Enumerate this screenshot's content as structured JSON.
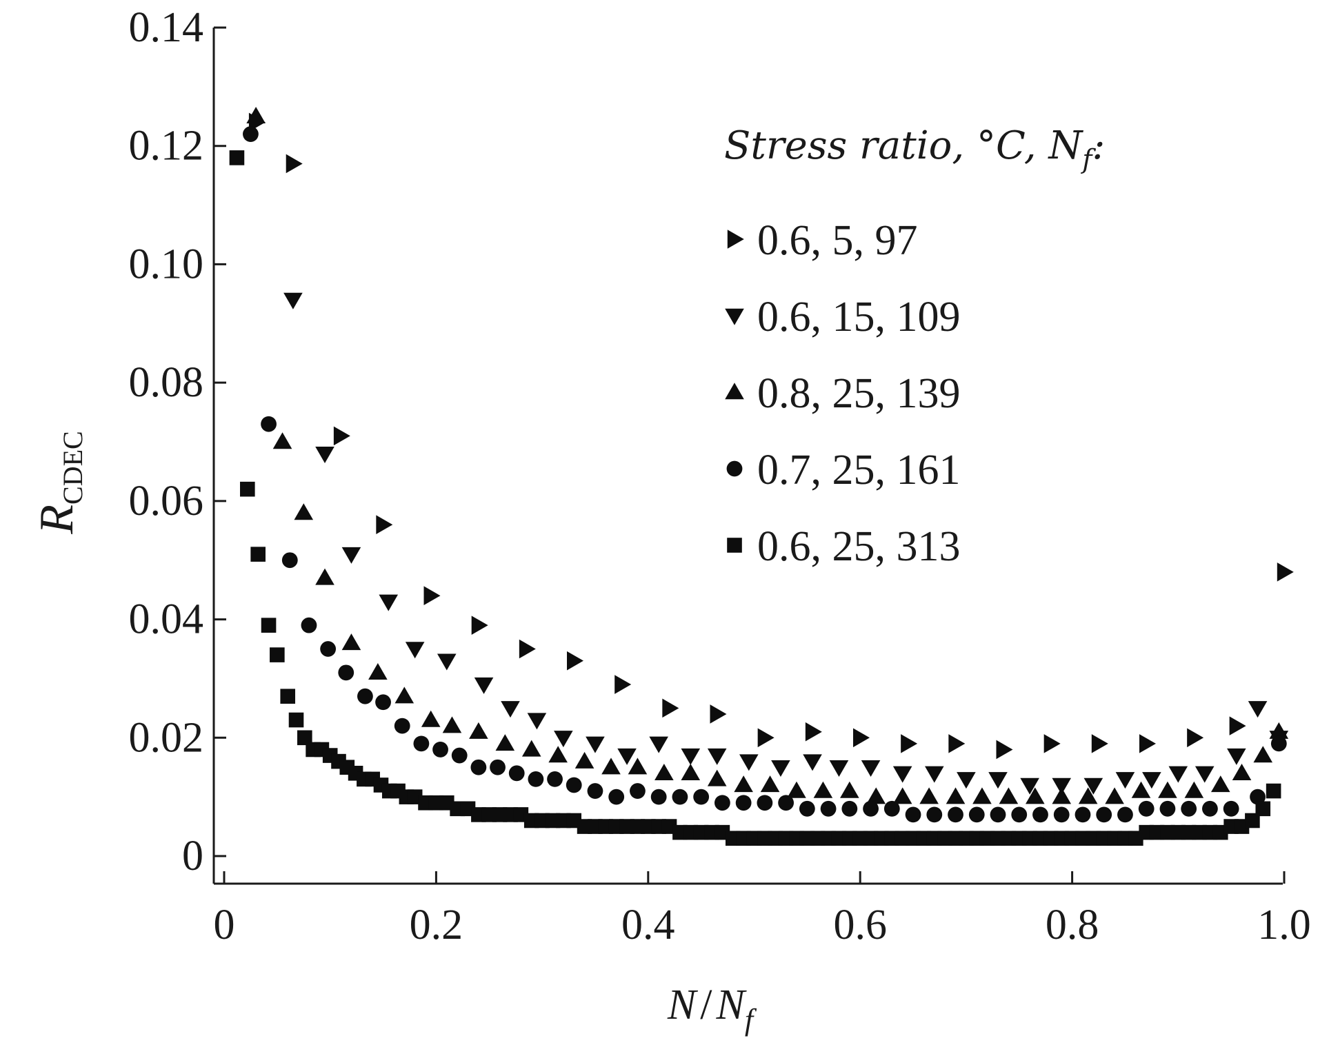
{
  "chart_data": {
    "type": "scatter",
    "title": "",
    "xlabel": "N/Nf",
    "ylabel": "R_CDEC",
    "xlim": [
      0,
      1.0
    ],
    "ylim": [
      0,
      0.14
    ],
    "grid": false,
    "legend_title": "Stress ratio, °C, Nf:",
    "legend_position": "top-right",
    "x_ticks": [
      "0",
      "0.2",
      "0.4",
      "0.6",
      "0.8",
      "1.0"
    ],
    "y_ticks": [
      "0",
      "0.02",
      "0.04",
      "0.06",
      "0.08",
      "0.10",
      "0.12",
      "0.14"
    ],
    "series": [
      {
        "name": "0.6, 5, 97",
        "marker": "triangle-right",
        "points": [
          [
            0.03,
            0.124
          ],
          [
            0.065,
            0.117
          ],
          [
            0.11,
            0.071
          ],
          [
            0.15,
            0.056
          ],
          [
            0.195,
            0.044
          ],
          [
            0.24,
            0.039
          ],
          [
            0.285,
            0.035
          ],
          [
            0.33,
            0.033
          ],
          [
            0.375,
            0.029
          ],
          [
            0.42,
            0.025
          ],
          [
            0.465,
            0.024
          ],
          [
            0.51,
            0.02
          ],
          [
            0.555,
            0.021
          ],
          [
            0.6,
            0.02
          ],
          [
            0.645,
            0.019
          ],
          [
            0.69,
            0.019
          ],
          [
            0.735,
            0.018
          ],
          [
            0.78,
            0.019
          ],
          [
            0.825,
            0.019
          ],
          [
            0.87,
            0.019
          ],
          [
            0.915,
            0.02
          ],
          [
            0.955,
            0.022
          ],
          [
            1.0,
            0.048
          ]
        ]
      },
      {
        "name": "0.6, 15, 109",
        "marker": "triangle-down",
        "points": [
          [
            0.065,
            0.094
          ],
          [
            0.095,
            0.068
          ],
          [
            0.12,
            0.051
          ],
          [
            0.155,
            0.043
          ],
          [
            0.18,
            0.035
          ],
          [
            0.21,
            0.033
          ],
          [
            0.245,
            0.029
          ],
          [
            0.27,
            0.025
          ],
          [
            0.295,
            0.023
          ],
          [
            0.32,
            0.02
          ],
          [
            0.35,
            0.019
          ],
          [
            0.38,
            0.017
          ],
          [
            0.41,
            0.019
          ],
          [
            0.44,
            0.017
          ],
          [
            0.465,
            0.017
          ],
          [
            0.495,
            0.016
          ],
          [
            0.525,
            0.015
          ],
          [
            0.555,
            0.016
          ],
          [
            0.58,
            0.015
          ],
          [
            0.61,
            0.015
          ],
          [
            0.64,
            0.014
          ],
          [
            0.67,
            0.014
          ],
          [
            0.7,
            0.013
          ],
          [
            0.73,
            0.013
          ],
          [
            0.76,
            0.012
          ],
          [
            0.79,
            0.012
          ],
          [
            0.82,
            0.012
          ],
          [
            0.85,
            0.013
          ],
          [
            0.875,
            0.013
          ],
          [
            0.9,
            0.014
          ],
          [
            0.925,
            0.014
          ],
          [
            0.955,
            0.017
          ],
          [
            0.975,
            0.025
          ],
          [
            0.995,
            0.02
          ]
        ]
      },
      {
        "name": "0.8, 25, 139",
        "marker": "triangle-up",
        "points": [
          [
            0.03,
            0.125
          ],
          [
            0.055,
            0.07
          ],
          [
            0.075,
            0.058
          ],
          [
            0.095,
            0.047
          ],
          [
            0.12,
            0.036
          ],
          [
            0.145,
            0.031
          ],
          [
            0.17,
            0.027
          ],
          [
            0.195,
            0.023
          ],
          [
            0.215,
            0.022
          ],
          [
            0.24,
            0.021
          ],
          [
            0.265,
            0.019
          ],
          [
            0.29,
            0.018
          ],
          [
            0.315,
            0.017
          ],
          [
            0.34,
            0.016
          ],
          [
            0.365,
            0.015
          ],
          [
            0.39,
            0.015
          ],
          [
            0.415,
            0.014
          ],
          [
            0.44,
            0.014
          ],
          [
            0.465,
            0.013
          ],
          [
            0.49,
            0.012
          ],
          [
            0.515,
            0.012
          ],
          [
            0.54,
            0.011
          ],
          [
            0.565,
            0.011
          ],
          [
            0.59,
            0.011
          ],
          [
            0.615,
            0.01
          ],
          [
            0.64,
            0.01
          ],
          [
            0.665,
            0.01
          ],
          [
            0.69,
            0.01
          ],
          [
            0.715,
            0.01
          ],
          [
            0.74,
            0.01
          ],
          [
            0.765,
            0.01
          ],
          [
            0.79,
            0.01
          ],
          [
            0.815,
            0.01
          ],
          [
            0.84,
            0.01
          ],
          [
            0.865,
            0.011
          ],
          [
            0.89,
            0.011
          ],
          [
            0.915,
            0.011
          ],
          [
            0.94,
            0.012
          ],
          [
            0.96,
            0.014
          ],
          [
            0.98,
            0.017
          ],
          [
            0.995,
            0.021
          ]
        ]
      },
      {
        "name": "0.7, 25, 161",
        "marker": "circle",
        "points": [
          [
            0.025,
            0.122
          ],
          [
            0.042,
            0.073
          ],
          [
            0.062,
            0.05
          ],
          [
            0.08,
            0.039
          ],
          [
            0.098,
            0.035
          ],
          [
            0.115,
            0.031
          ],
          [
            0.133,
            0.027
          ],
          [
            0.15,
            0.026
          ],
          [
            0.168,
            0.022
          ],
          [
            0.186,
            0.019
          ],
          [
            0.204,
            0.018
          ],
          [
            0.222,
            0.017
          ],
          [
            0.24,
            0.015
          ],
          [
            0.258,
            0.015
          ],
          [
            0.276,
            0.014
          ],
          [
            0.294,
            0.013
          ],
          [
            0.312,
            0.013
          ],
          [
            0.33,
            0.012
          ],
          [
            0.35,
            0.011
          ],
          [
            0.37,
            0.01
          ],
          [
            0.39,
            0.011
          ],
          [
            0.41,
            0.01
          ],
          [
            0.43,
            0.01
          ],
          [
            0.45,
            0.01
          ],
          [
            0.47,
            0.009
          ],
          [
            0.49,
            0.009
          ],
          [
            0.51,
            0.009
          ],
          [
            0.53,
            0.009
          ],
          [
            0.55,
            0.008
          ],
          [
            0.57,
            0.008
          ],
          [
            0.59,
            0.008
          ],
          [
            0.61,
            0.008
          ],
          [
            0.63,
            0.008
          ],
          [
            0.65,
            0.007
          ],
          [
            0.67,
            0.007
          ],
          [
            0.69,
            0.007
          ],
          [
            0.71,
            0.007
          ],
          [
            0.73,
            0.007
          ],
          [
            0.75,
            0.007
          ],
          [
            0.77,
            0.007
          ],
          [
            0.79,
            0.007
          ],
          [
            0.81,
            0.007
          ],
          [
            0.83,
            0.007
          ],
          [
            0.85,
            0.007
          ],
          [
            0.87,
            0.008
          ],
          [
            0.89,
            0.008
          ],
          [
            0.91,
            0.008
          ],
          [
            0.93,
            0.008
          ],
          [
            0.95,
            0.008
          ],
          [
            0.975,
            0.01
          ],
          [
            0.995,
            0.019
          ]
        ]
      },
      {
        "name": "0.6, 25, 313",
        "marker": "square",
        "points": [
          [
            0.012,
            0.118
          ],
          [
            0.022,
            0.062
          ],
          [
            0.032,
            0.051
          ],
          [
            0.042,
            0.039
          ],
          [
            0.05,
            0.034
          ],
          [
            0.06,
            0.027
          ],
          [
            0.068,
            0.023
          ],
          [
            0.076,
            0.02
          ],
          [
            0.084,
            0.018
          ],
          [
            0.092,
            0.018
          ],
          [
            0.1,
            0.017
          ],
          [
            0.108,
            0.016
          ],
          [
            0.116,
            0.015
          ],
          [
            0.124,
            0.014
          ],
          [
            0.132,
            0.013
          ],
          [
            0.14,
            0.013
          ],
          [
            0.148,
            0.012
          ],
          [
            0.156,
            0.011
          ],
          [
            0.164,
            0.011
          ],
          [
            0.172,
            0.01
          ],
          [
            0.18,
            0.01
          ],
          [
            0.19,
            0.009
          ],
          [
            0.2,
            0.009
          ],
          [
            0.21,
            0.009
          ],
          [
            0.22,
            0.008
          ],
          [
            0.23,
            0.008
          ],
          [
            0.24,
            0.007
          ],
          [
            0.25,
            0.007
          ],
          [
            0.26,
            0.007
          ],
          [
            0.27,
            0.007
          ],
          [
            0.28,
            0.007
          ],
          [
            0.29,
            0.006
          ],
          [
            0.3,
            0.006
          ],
          [
            0.31,
            0.006
          ],
          [
            0.32,
            0.006
          ],
          [
            0.33,
            0.006
          ],
          [
            0.34,
            0.005
          ],
          [
            0.35,
            0.005
          ],
          [
            0.36,
            0.005
          ],
          [
            0.37,
            0.005
          ],
          [
            0.38,
            0.005
          ],
          [
            0.39,
            0.005
          ],
          [
            0.4,
            0.005
          ],
          [
            0.41,
            0.005
          ],
          [
            0.42,
            0.005
          ],
          [
            0.43,
            0.004
          ],
          [
            0.44,
            0.004
          ],
          [
            0.45,
            0.004
          ],
          [
            0.46,
            0.004
          ],
          [
            0.47,
            0.004
          ],
          [
            0.48,
            0.003
          ],
          [
            0.49,
            0.003
          ],
          [
            0.5,
            0.003
          ],
          [
            0.51,
            0.003
          ],
          [
            0.52,
            0.003
          ],
          [
            0.53,
            0.003
          ],
          [
            0.54,
            0.003
          ],
          [
            0.55,
            0.003
          ],
          [
            0.56,
            0.003
          ],
          [
            0.57,
            0.003
          ],
          [
            0.58,
            0.003
          ],
          [
            0.59,
            0.003
          ],
          [
            0.6,
            0.003
          ],
          [
            0.61,
            0.003
          ],
          [
            0.62,
            0.003
          ],
          [
            0.63,
            0.003
          ],
          [
            0.64,
            0.003
          ],
          [
            0.65,
            0.003
          ],
          [
            0.66,
            0.003
          ],
          [
            0.67,
            0.003
          ],
          [
            0.68,
            0.003
          ],
          [
            0.69,
            0.003
          ],
          [
            0.7,
            0.003
          ],
          [
            0.71,
            0.003
          ],
          [
            0.72,
            0.003
          ],
          [
            0.73,
            0.003
          ],
          [
            0.74,
            0.003
          ],
          [
            0.75,
            0.003
          ],
          [
            0.76,
            0.003
          ],
          [
            0.77,
            0.003
          ],
          [
            0.78,
            0.003
          ],
          [
            0.79,
            0.003
          ],
          [
            0.8,
            0.003
          ],
          [
            0.81,
            0.003
          ],
          [
            0.82,
            0.003
          ],
          [
            0.83,
            0.003
          ],
          [
            0.84,
            0.003
          ],
          [
            0.85,
            0.003
          ],
          [
            0.86,
            0.003
          ],
          [
            0.87,
            0.004
          ],
          [
            0.88,
            0.004
          ],
          [
            0.89,
            0.004
          ],
          [
            0.9,
            0.004
          ],
          [
            0.91,
            0.004
          ],
          [
            0.92,
            0.004
          ],
          [
            0.93,
            0.004
          ],
          [
            0.94,
            0.004
          ],
          [
            0.95,
            0.005
          ],
          [
            0.96,
            0.005
          ],
          [
            0.97,
            0.006
          ],
          [
            0.98,
            0.008
          ],
          [
            0.99,
            0.011
          ]
        ]
      }
    ]
  }
}
